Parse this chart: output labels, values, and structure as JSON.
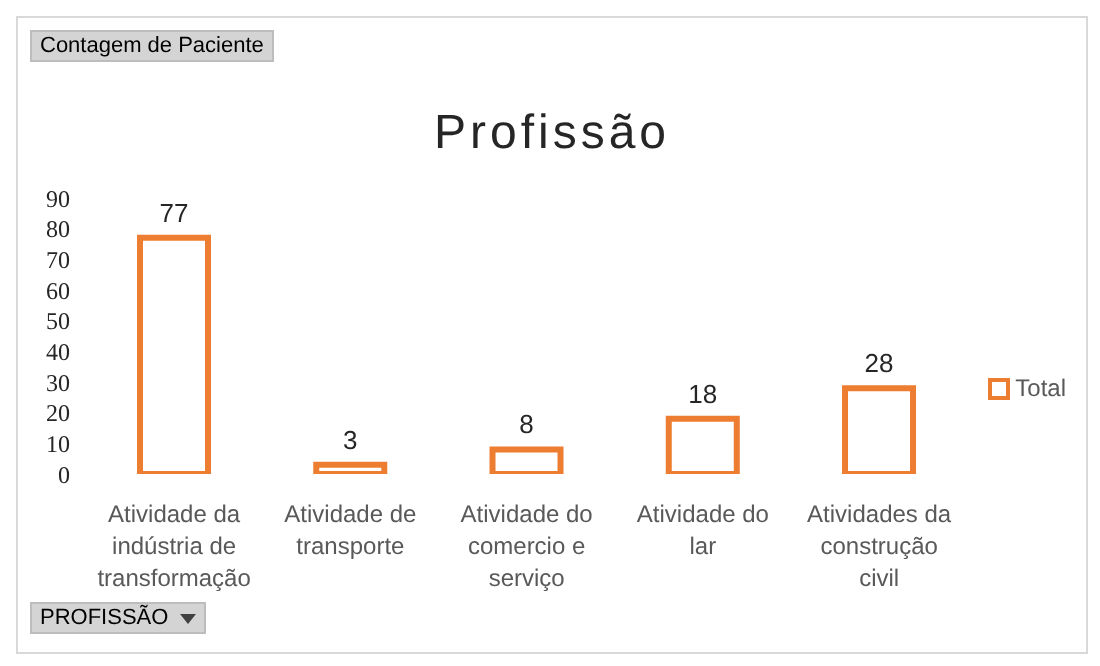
{
  "chart_data": {
    "type": "bar",
    "title": "Profissão",
    "categories": [
      "Atividade da indústria de transformação",
      "Atividade de transporte",
      "Atividade do comercio e serviço",
      "Atividade do lar",
      "Atividades da construção civil"
    ],
    "series": [
      {
        "name": "Total",
        "color": "#ed7d31",
        "values": [
          77,
          3,
          8,
          18,
          28
        ]
      }
    ],
    "ylim": [
      0,
      90
    ],
    "yticks": [
      0,
      10,
      20,
      30,
      40,
      50,
      60,
      70,
      80,
      90
    ],
    "grid": false,
    "legend": "right",
    "data_labels": true,
    "annotations": [
      "Contagem de Paciente",
      "PROFISSÃO"
    ]
  }
}
